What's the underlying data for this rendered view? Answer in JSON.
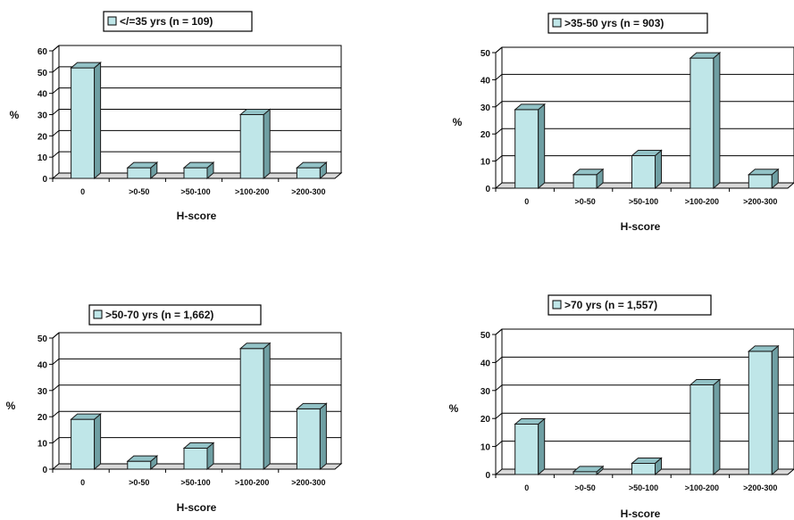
{
  "chart_data": [
    {
      "type": "bar",
      "legend": "</=35 yrs (n = 109)",
      "categories": [
        "0",
        ">0-50",
        ">50-100",
        ">100-200",
        ">200-300"
      ],
      "values": [
        52,
        5,
        5,
        30,
        5
      ],
      "yticks": [
        "0",
        "10",
        "20",
        "30",
        "40",
        "50",
        "60"
      ],
      "ylim": [
        0,
        60
      ],
      "ylabel": "%",
      "xlabel": "H-score",
      "grid": true,
      "legend_position": "top"
    },
    {
      "type": "bar",
      "legend": ">35-50 yrs (n = 903)",
      "categories": [
        "0",
        ">0-50",
        ">50-100",
        ">100-200",
        ">200-300"
      ],
      "values": [
        29,
        5,
        12,
        48,
        5
      ],
      "yticks": [
        "0",
        "10",
        "20",
        "30",
        "40",
        "50"
      ],
      "ylim": [
        0,
        50
      ],
      "ylabel": "%",
      "xlabel": "H-score",
      "grid": true,
      "legend_position": "top"
    },
    {
      "type": "bar",
      "legend": ">50-70 yrs (n = 1,662)",
      "categories": [
        "0",
        ">0-50",
        ">50-100",
        ">100-200",
        ">200-300"
      ],
      "values": [
        19,
        3,
        8,
        46,
        23
      ],
      "yticks": [
        "0",
        "10",
        "20",
        "30",
        "40",
        "50"
      ],
      "ylim": [
        0,
        50
      ],
      "ylabel": "%",
      "xlabel": "H-score",
      "grid": true,
      "legend_position": "top"
    },
    {
      "type": "bar",
      "legend": ">70 yrs (n = 1,557)",
      "categories": [
        "0",
        ">0-50",
        ">50-100",
        ">100-200",
        ">200-300"
      ],
      "values": [
        18,
        1,
        4,
        32,
        44
      ],
      "yticks": [
        "0",
        "10",
        "20",
        "30",
        "40",
        "50"
      ],
      "ylim": [
        0,
        50
      ],
      "ylabel": "%",
      "xlabel": "H-score",
      "grid": true,
      "legend_position": "top"
    }
  ],
  "colors": {
    "bar_front": "#bfe6e8",
    "bar_side": "#6f9fa3",
    "bar_top": "#92c2c6",
    "bar_outline": "#1a1a1a",
    "grid": "#000000",
    "wall": "#ffffff"
  }
}
